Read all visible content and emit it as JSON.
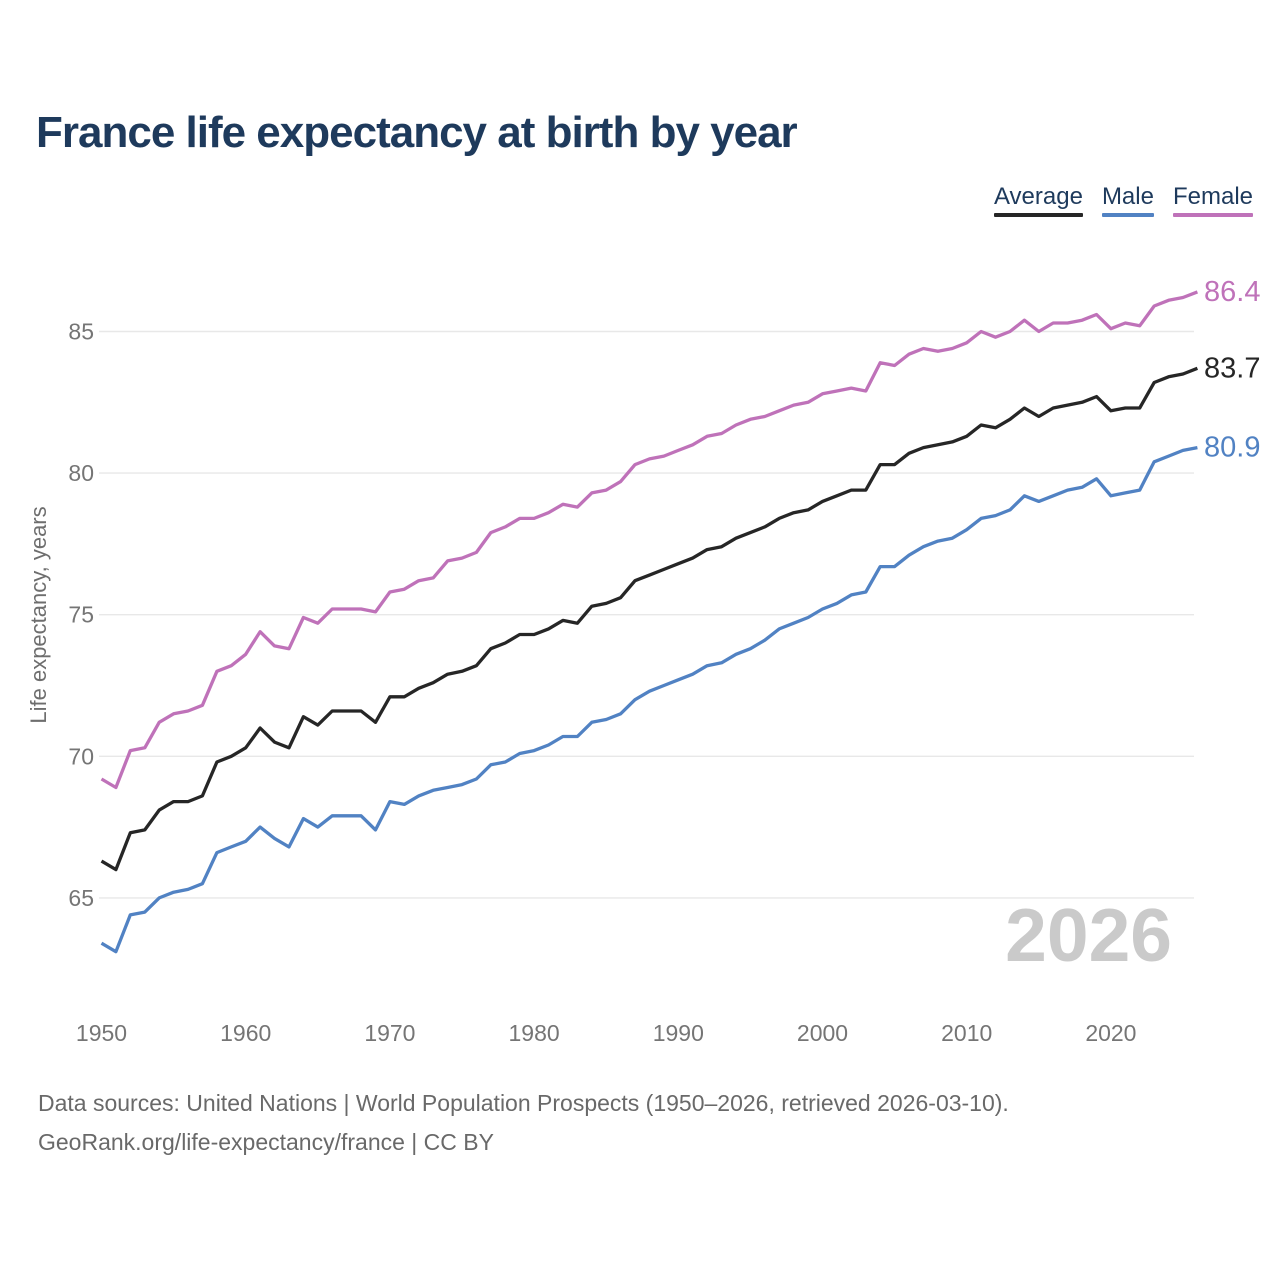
{
  "title": "France life expectancy at birth by year",
  "legend": [
    {
      "label": "Average",
      "color": "#262626"
    },
    {
      "label": "Male",
      "color": "#5182c3"
    },
    {
      "label": "Female",
      "color": "#bf72b9"
    }
  ],
  "watermark": "2026",
  "footer": {
    "line1": "Data sources: United Nations | World Population Prospects (1950–2026, retrieved 2026-03-10).",
    "line2": "GeoRank.org/life-expectancy/france | CC BY"
  },
  "end_labels": [
    {
      "series": "Female",
      "value": "86.4"
    },
    {
      "series": "Average",
      "value": "83.7"
    },
    {
      "series": "Male",
      "value": "80.9"
    }
  ],
  "chart_data": {
    "type": "line",
    "title": "France life expectancy at birth by year",
    "xlabel": "",
    "ylabel": "Life expectancy, years",
    "x_start": 1950,
    "x_end": 2026,
    "x_ticks": [
      1950,
      1960,
      1970,
      1980,
      1990,
      2000,
      2010,
      2020
    ],
    "y_ticks": [
      65,
      70,
      75,
      80,
      85
    ],
    "ylim": [
      62.5,
      87.2
    ],
    "grid": "horizontal",
    "legend_position": "top-right",
    "colors": {
      "grid": "#e8e8e8",
      "tick_text": "#757575",
      "axis_label": "#6e6e6e",
      "watermark": "#cacaca"
    },
    "series": [
      {
        "name": "Female",
        "color": "#bf72b9",
        "end_label": "86.4",
        "values": [
          69.2,
          68.9,
          70.2,
          70.3,
          71.2,
          71.5,
          71.6,
          71.8,
          73.0,
          73.2,
          73.6,
          74.4,
          73.9,
          73.8,
          74.9,
          74.7,
          75.2,
          75.2,
          75.2,
          75.1,
          75.8,
          75.9,
          76.2,
          76.3,
          76.9,
          77.0,
          77.2,
          77.9,
          78.1,
          78.4,
          78.4,
          78.6,
          78.9,
          78.8,
          79.3,
          79.4,
          79.7,
          80.3,
          80.5,
          80.6,
          80.8,
          81.0,
          81.3,
          81.4,
          81.7,
          81.9,
          82.0,
          82.2,
          82.4,
          82.5,
          82.8,
          82.9,
          83.0,
          82.9,
          83.9,
          83.8,
          84.2,
          84.4,
          84.3,
          84.4,
          84.6,
          85.0,
          84.8,
          85.0,
          85.4,
          85.0,
          85.3,
          85.3,
          85.4,
          85.6,
          85.1,
          85.3,
          85.2,
          85.9,
          86.1,
          86.2,
          86.4
        ]
      },
      {
        "name": "Average",
        "color": "#262626",
        "end_label": "83.7",
        "values": [
          66.3,
          66.0,
          67.3,
          67.4,
          68.1,
          68.4,
          68.4,
          68.6,
          69.8,
          70.0,
          70.3,
          71.0,
          70.5,
          70.3,
          71.4,
          71.1,
          71.6,
          71.6,
          71.6,
          71.2,
          72.1,
          72.1,
          72.4,
          72.6,
          72.9,
          73.0,
          73.2,
          73.8,
          74.0,
          74.3,
          74.3,
          74.5,
          74.8,
          74.7,
          75.3,
          75.4,
          75.6,
          76.2,
          76.4,
          76.6,
          76.8,
          77.0,
          77.3,
          77.4,
          77.7,
          77.9,
          78.1,
          78.4,
          78.6,
          78.7,
          79.0,
          79.2,
          79.4,
          79.4,
          80.3,
          80.3,
          80.7,
          80.9,
          81.0,
          81.1,
          81.3,
          81.7,
          81.6,
          81.9,
          82.3,
          82.0,
          82.3,
          82.4,
          82.5,
          82.7,
          82.2,
          82.3,
          82.3,
          83.2,
          83.4,
          83.5,
          83.7
        ]
      },
      {
        "name": "Male",
        "color": "#5182c3",
        "end_label": "80.9",
        "values": [
          63.4,
          63.1,
          64.4,
          64.5,
          65.0,
          65.2,
          65.3,
          65.5,
          66.6,
          66.8,
          67.0,
          67.5,
          67.1,
          66.8,
          67.8,
          67.5,
          67.9,
          67.9,
          67.9,
          67.4,
          68.4,
          68.3,
          68.6,
          68.8,
          68.9,
          69.0,
          69.2,
          69.7,
          69.8,
          70.1,
          70.2,
          70.4,
          70.7,
          70.7,
          71.2,
          71.3,
          71.5,
          72.0,
          72.3,
          72.5,
          72.7,
          72.9,
          73.2,
          73.3,
          73.6,
          73.8,
          74.1,
          74.5,
          74.7,
          74.9,
          75.2,
          75.4,
          75.7,
          75.8,
          76.7,
          76.7,
          77.1,
          77.4,
          77.6,
          77.7,
          78.0,
          78.4,
          78.5,
          78.7,
          79.2,
          79.0,
          79.2,
          79.4,
          79.5,
          79.8,
          79.2,
          79.3,
          79.4,
          80.4,
          80.6,
          80.8,
          80.9
        ]
      }
    ]
  }
}
